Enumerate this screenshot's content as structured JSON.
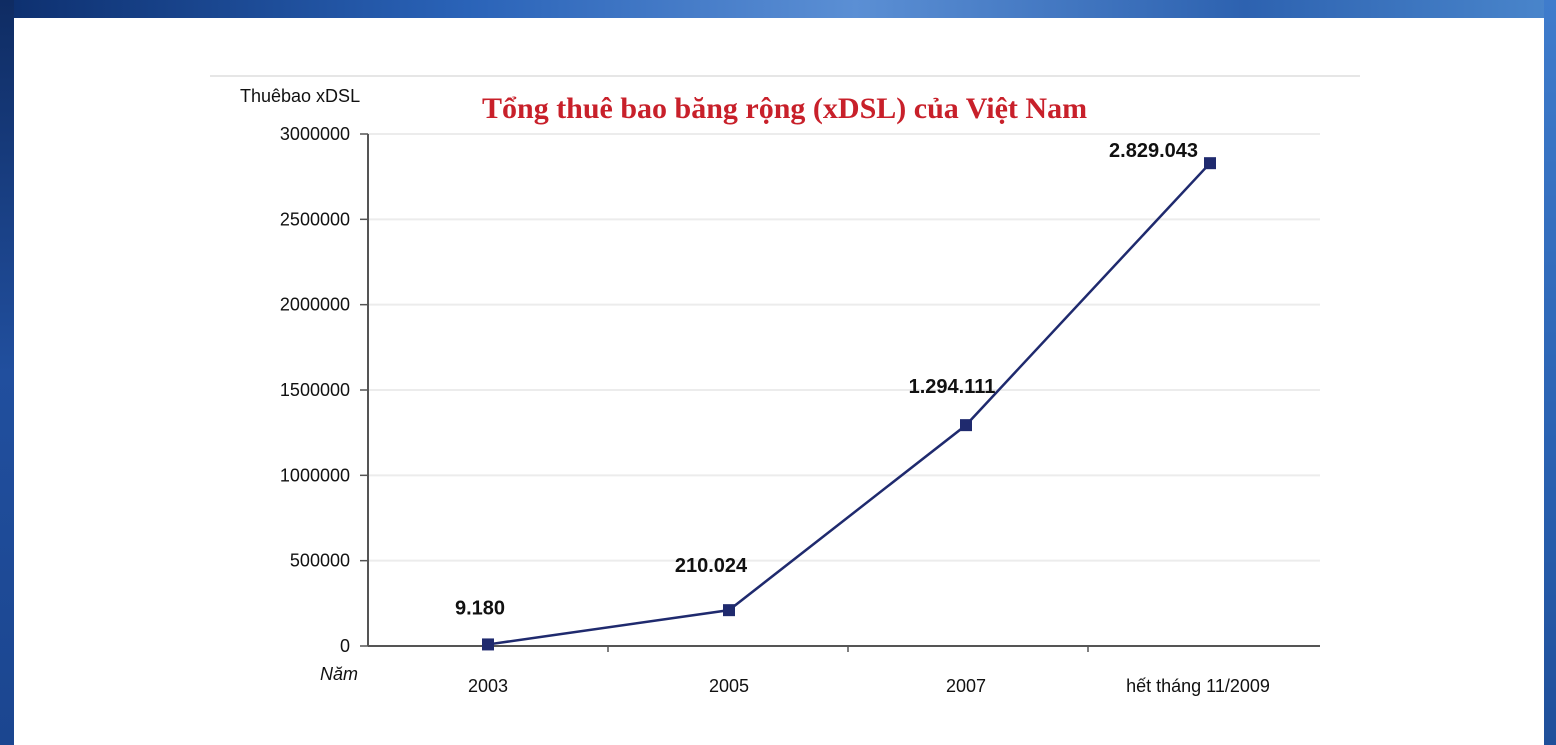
{
  "slide": {
    "background": "#ffffff",
    "frame_color": "#1a4f9c"
  },
  "chart_data": {
    "type": "line",
    "title": "Tổng thuê bao băng rộng (xDSL) của Việt Nam",
    "ylabel": "Thuêbao xDSL",
    "xlabel": "Năm",
    "categories": [
      "2003",
      "2005",
      "2007",
      "hết tháng 11/2009"
    ],
    "series": [
      {
        "values": [
          9180,
          210024,
          1294111,
          2829043
        ],
        "data_labels": [
          "9.180",
          "210.024",
          "1.294.111",
          "2.829.043"
        ],
        "color": "#1f2a6e"
      }
    ],
    "yticks": [
      "0",
      "500000",
      "1000000",
      "1500000",
      "2000000",
      "2500000",
      "3000000"
    ],
    "ylim": [
      0,
      3000000
    ],
    "grid": true,
    "legend": false,
    "title_color": "#c8202a"
  }
}
